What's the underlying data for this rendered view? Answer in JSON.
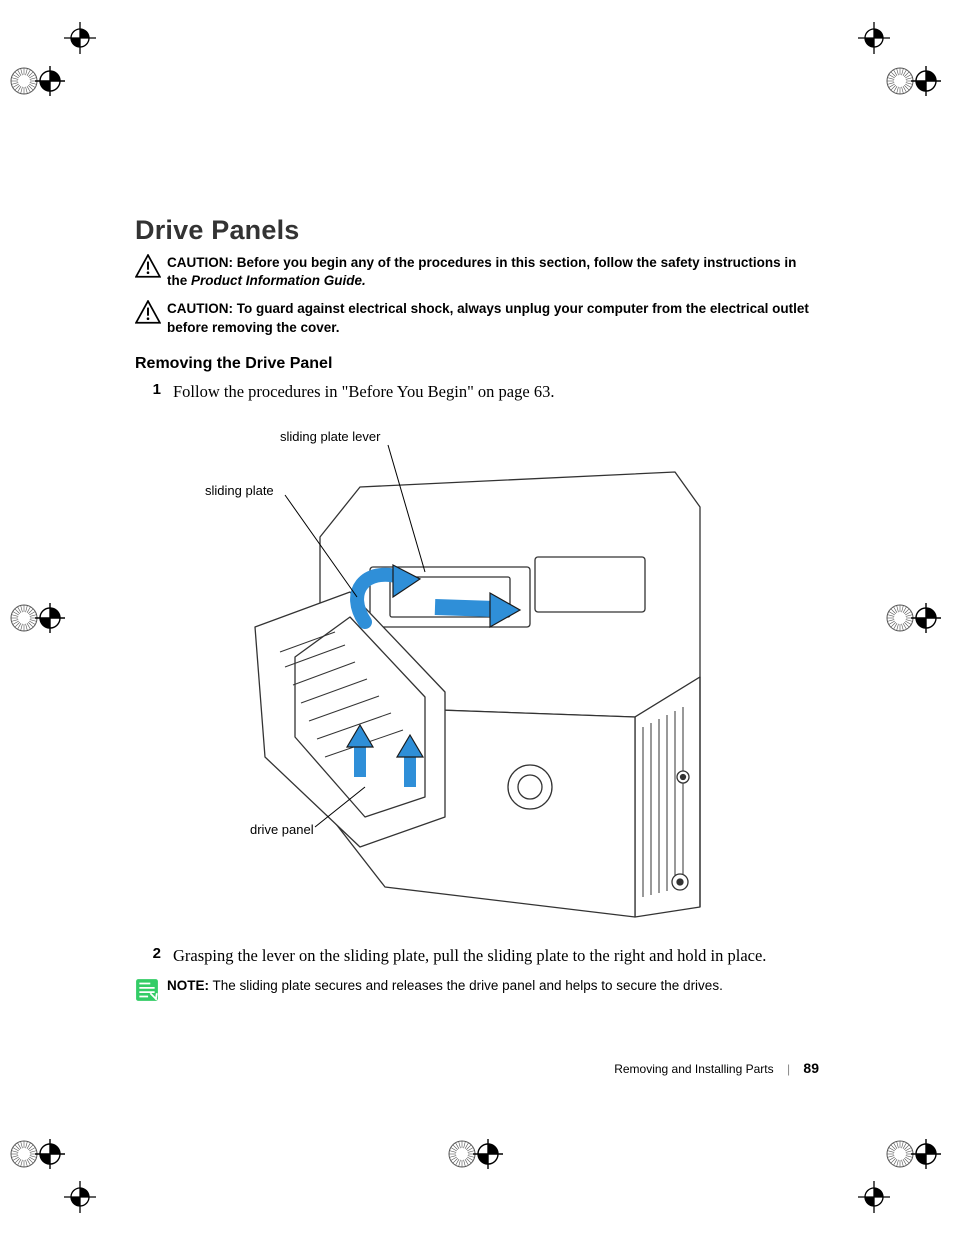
{
  "heading": "Drive Panels",
  "cautions": [
    {
      "label": "CAUTION:",
      "body_pre": "Before you begin any of the procedures in this section, follow the safety instructions in the ",
      "body_ital": "Product Information Guide.",
      "body_post": ""
    },
    {
      "label": "CAUTION:",
      "body_pre": "To guard against electrical shock, always unplug your computer from the electrical outlet before removing the cover.",
      "body_ital": "",
      "body_post": ""
    }
  ],
  "subheading": "Removing the Drive Panel",
  "step1_num": "1",
  "step1_body": "Follow the procedures in \"Before You Begin\" on page 63.",
  "callouts": {
    "sliding_plate_lever": "sliding plate lever",
    "sliding_plate": "sliding plate",
    "drive_panel": "drive panel"
  },
  "step2_num": "2",
  "step2_body": "Grasping the lever on the sliding plate, pull the sliding plate to the right and hold in place.",
  "note": {
    "label": "NOTE:",
    "body": "The sliding plate secures and releases the drive panel and helps to secure the drives."
  },
  "footer": {
    "section": "Removing and Installing Parts",
    "page": "89"
  },
  "colors": {
    "arrow_fill": "#2f8fd8",
    "arrow_stroke": "#1a1a1a",
    "line": "#1a1a1a",
    "panel_fill": "#ffffff",
    "panel_stroke": "#333333",
    "reg_fill": "#7b7b7b"
  },
  "figure": {
    "type": "technical-line-drawing",
    "callout_leaders": [
      {
        "from": "sliding_plate_lever",
        "to": "internal-lever"
      },
      {
        "from": "sliding_plate",
        "to": "internal-plate"
      },
      {
        "from": "drive_panel",
        "to": "front-bezel"
      }
    ],
    "arrows": [
      {
        "kind": "curved-up-left",
        "color": "#2f8fd8"
      },
      {
        "kind": "straight-right",
        "color": "#2f8fd8"
      },
      {
        "kind": "straight-up",
        "color": "#2f8fd8"
      },
      {
        "kind": "straight-up",
        "color": "#2f8fd8"
      }
    ]
  }
}
